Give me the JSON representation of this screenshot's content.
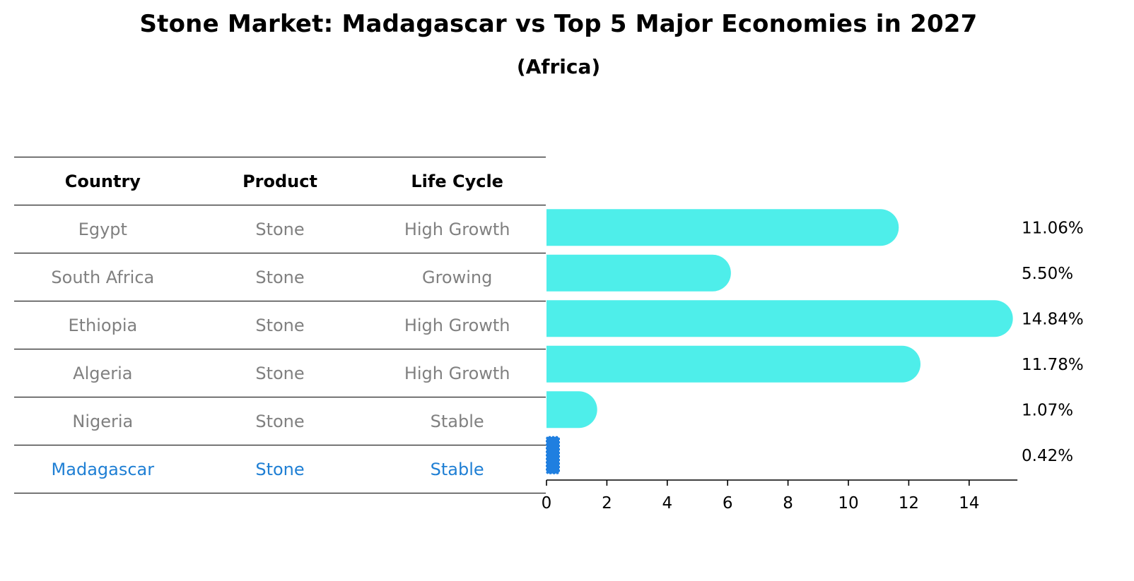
{
  "title": "Stone Market: Madagascar vs Top 5 Major Economies in 2027",
  "subtitle": "(Africa)",
  "table": {
    "headers": [
      "Country",
      "Product",
      "Life Cycle"
    ],
    "rows": [
      {
        "country": "Egypt",
        "product": "Stone",
        "life_cycle": "High Growth"
      },
      {
        "country": "South Africa",
        "product": "Stone",
        "life_cycle": "Growing"
      },
      {
        "country": "Ethiopia",
        "product": "Stone",
        "life_cycle": "High Growth"
      },
      {
        "country": "Algeria",
        "product": "Stone",
        "life_cycle": "High Growth"
      },
      {
        "country": "Nigeria",
        "product": "Stone",
        "life_cycle": "Stable"
      },
      {
        "country": "Madagascar",
        "product": "Stone",
        "life_cycle": "Stable"
      }
    ]
  },
  "chart_data": {
    "type": "bar",
    "orientation": "horizontal",
    "categories": [
      "Egypt",
      "South Africa",
      "Ethiopia",
      "Algeria",
      "Nigeria",
      "Madagascar"
    ],
    "values": [
      11.06,
      5.5,
      14.84,
      11.78,
      1.07,
      0.42
    ],
    "value_labels": [
      "11.06%",
      "5.50%",
      "14.84%",
      "11.78%",
      "1.07%",
      "0.42%"
    ],
    "xlim": [
      0,
      15.6
    ],
    "xticks": [
      0,
      2,
      4,
      6,
      8,
      10,
      12,
      14
    ],
    "grid": false,
    "highlight": "Madagascar",
    "colors": {
      "bar": "#4eeeea",
      "highlight_bar": "#1f7fe0",
      "highlight_text": "#1f7fd4",
      "muted_text": "#808080"
    }
  }
}
